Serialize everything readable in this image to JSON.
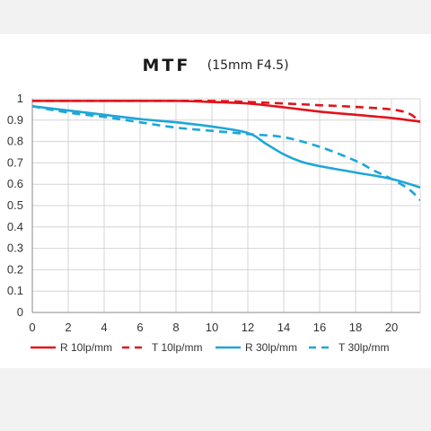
{
  "chart_data": {
    "type": "line",
    "title": "MTF",
    "subtitle": "(15mm F4.5)",
    "xlabel": "",
    "ylabel": "",
    "xlim": [
      0,
      21.6
    ],
    "ylim": [
      0,
      1
    ],
    "x_ticks": [
      0,
      2,
      4,
      6,
      8,
      10,
      12,
      14,
      16,
      18,
      20
    ],
    "y_ticks": [
      "0",
      "0.1",
      "0.2",
      "0.3",
      "0.4",
      "0.5",
      "0.6",
      "0.7",
      "0.8",
      "0.9",
      "1"
    ],
    "grid": true,
    "legend_position": "bottom",
    "series": [
      {
        "name": "R 10lp/mm",
        "color": "#e0141c",
        "dash": "solid",
        "points": [
          [
            0,
            0.99
          ],
          [
            4,
            0.99
          ],
          [
            8,
            0.99
          ],
          [
            10,
            0.985
          ],
          [
            12,
            0.978
          ],
          [
            14,
            0.96
          ],
          [
            16,
            0.94
          ],
          [
            18,
            0.925
          ],
          [
            20,
            0.91
          ],
          [
            21.6,
            0.893
          ]
        ]
      },
      {
        "name": "T 10lp/mm",
        "color": "#e0141c",
        "dash": "dashed",
        "points": [
          [
            0,
            0.99
          ],
          [
            6,
            0.99
          ],
          [
            10,
            0.99
          ],
          [
            12,
            0.985
          ],
          [
            14,
            0.978
          ],
          [
            16,
            0.97
          ],
          [
            18,
            0.962
          ],
          [
            20,
            0.95
          ],
          [
            21,
            0.93
          ],
          [
            21.6,
            0.89
          ]
        ]
      },
      {
        "name": "R 30lp/mm",
        "color": "#1ea6d8",
        "dash": "solid",
        "points": [
          [
            0,
            0.965
          ],
          [
            2,
            0.945
          ],
          [
            4,
            0.925
          ],
          [
            6,
            0.905
          ],
          [
            8,
            0.89
          ],
          [
            10,
            0.87
          ],
          [
            12,
            0.84
          ],
          [
            13,
            0.79
          ],
          [
            14,
            0.74
          ],
          [
            15,
            0.705
          ],
          [
            16,
            0.685
          ],
          [
            18,
            0.655
          ],
          [
            20,
            0.625
          ],
          [
            21.6,
            0.585
          ]
        ]
      },
      {
        "name": "T 30lp/mm",
        "color": "#1ea6d8",
        "dash": "dashed",
        "points": [
          [
            0,
            0.965
          ],
          [
            2,
            0.935
          ],
          [
            4,
            0.915
          ],
          [
            6,
            0.89
          ],
          [
            8,
            0.865
          ],
          [
            10,
            0.85
          ],
          [
            12,
            0.835
          ],
          [
            14,
            0.82
          ],
          [
            16,
            0.775
          ],
          [
            18,
            0.71
          ],
          [
            19,
            0.665
          ],
          [
            20,
            0.625
          ],
          [
            21,
            0.575
          ],
          [
            21.6,
            0.525
          ]
        ]
      }
    ]
  }
}
